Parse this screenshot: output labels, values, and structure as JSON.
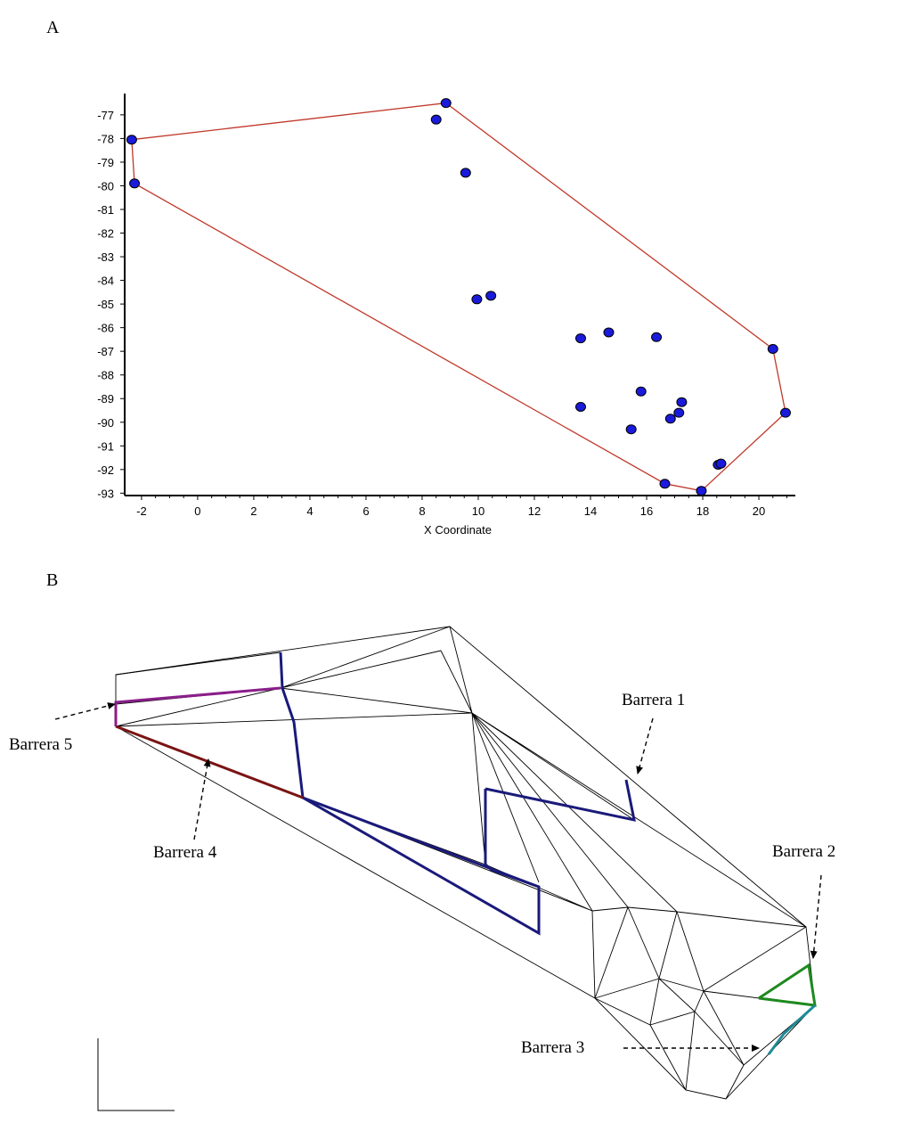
{
  "panels": {
    "a": "A",
    "b": "B"
  },
  "chart_data": {
    "type": "scatter",
    "xlabel": "X Coordinate",
    "ylabel": "",
    "xlim": [
      -2.6,
      21.3
    ],
    "ylim": [
      -93.1,
      -76.1
    ],
    "xticks": [
      -2,
      0,
      2,
      4,
      6,
      8,
      10,
      12,
      14,
      16,
      18,
      20
    ],
    "yticks": [
      -77,
      -78,
      -79,
      -80,
      -81,
      -82,
      -83,
      -84,
      -85,
      -86,
      -87,
      -88,
      -89,
      -90,
      -91,
      -92,
      -93
    ],
    "point_color": "#1a1adb",
    "hull_color": "#c0392b",
    "points": [
      {
        "x": -2.35,
        "y": -78.05
      },
      {
        "x": -2.25,
        "y": -79.9
      },
      {
        "x": 8.85,
        "y": -76.5
      },
      {
        "x": 8.5,
        "y": -77.2
      },
      {
        "x": 9.55,
        "y": -79.45
      },
      {
        "x": 9.95,
        "y": -84.8
      },
      {
        "x": 10.45,
        "y": -84.65
      },
      {
        "x": 13.65,
        "y": -86.45
      },
      {
        "x": 14.65,
        "y": -86.2
      },
      {
        "x": 16.35,
        "y": -86.4
      },
      {
        "x": 15.8,
        "y": -88.7
      },
      {
        "x": 13.65,
        "y": -89.35
      },
      {
        "x": 15.45,
        "y": -90.3
      },
      {
        "x": 16.85,
        "y": -89.85
      },
      {
        "x": 17.15,
        "y": -89.6
      },
      {
        "x": 17.25,
        "y": -89.15
      },
      {
        "x": 18.55,
        "y": -91.8
      },
      {
        "x": 18.65,
        "y": -91.75
      },
      {
        "x": 16.65,
        "y": -92.6
      },
      {
        "x": 17.95,
        "y": -92.9
      },
      {
        "x": 20.5,
        "y": -86.9
      },
      {
        "x": 20.95,
        "y": -89.6
      }
    ],
    "hull": [
      {
        "x": -2.35,
        "y": -78.05
      },
      {
        "x": 8.85,
        "y": -76.5
      },
      {
        "x": 20.5,
        "y": -86.9
      },
      {
        "x": 20.95,
        "y": -89.6
      },
      {
        "x": 17.95,
        "y": -92.9
      },
      {
        "x": 16.65,
        "y": -92.6
      },
      {
        "x": -2.25,
        "y": -79.9
      },
      {
        "x": -2.35,
        "y": -78.05
      }
    ]
  },
  "diagram": {
    "labels": {
      "b1": "Barrera 1",
      "b2": "Barrera 2",
      "b3": "Barrera 3",
      "b4": "Barrera 4",
      "b5": "Barrera 5"
    },
    "colors": {
      "mesh": "#000000",
      "barrier1": "#1a1a7a",
      "barrier2": "#1e8a1e",
      "barrier3": "#1e8a96",
      "barrier4": "#7a1414",
      "barrier5": "#8a1e8a"
    }
  }
}
